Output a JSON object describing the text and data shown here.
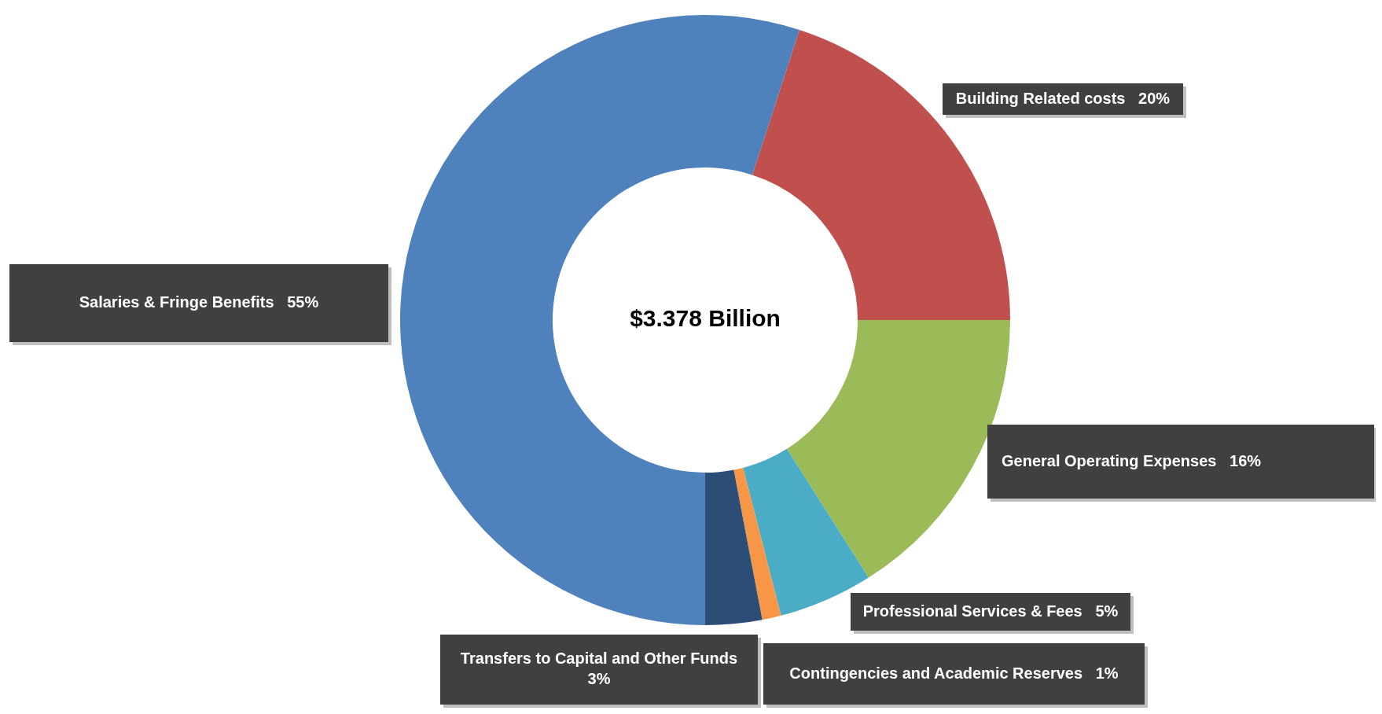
{
  "chart_data": {
    "type": "donut",
    "categories": [
      "Building Related costs",
      "General Operating Expenses",
      "Professional Services & Fees",
      "Contingencies and Academic Reserves",
      "Transfers to Capital and Other Funds",
      "Salaries & Fringe Benefits"
    ],
    "values": [
      20,
      16,
      5,
      1,
      3,
      55
    ],
    "value_labels": [
      "20%",
      "16%",
      "5%",
      "1%",
      "3%",
      "55%"
    ],
    "colors": [
      "#c0504d",
      "#9bbb59",
      "#4bacc6",
      "#f79646",
      "#2c4d75",
      "#4f81bd"
    ],
    "annotations": [
      "$3.378 Billion"
    ],
    "legend": false
  }
}
